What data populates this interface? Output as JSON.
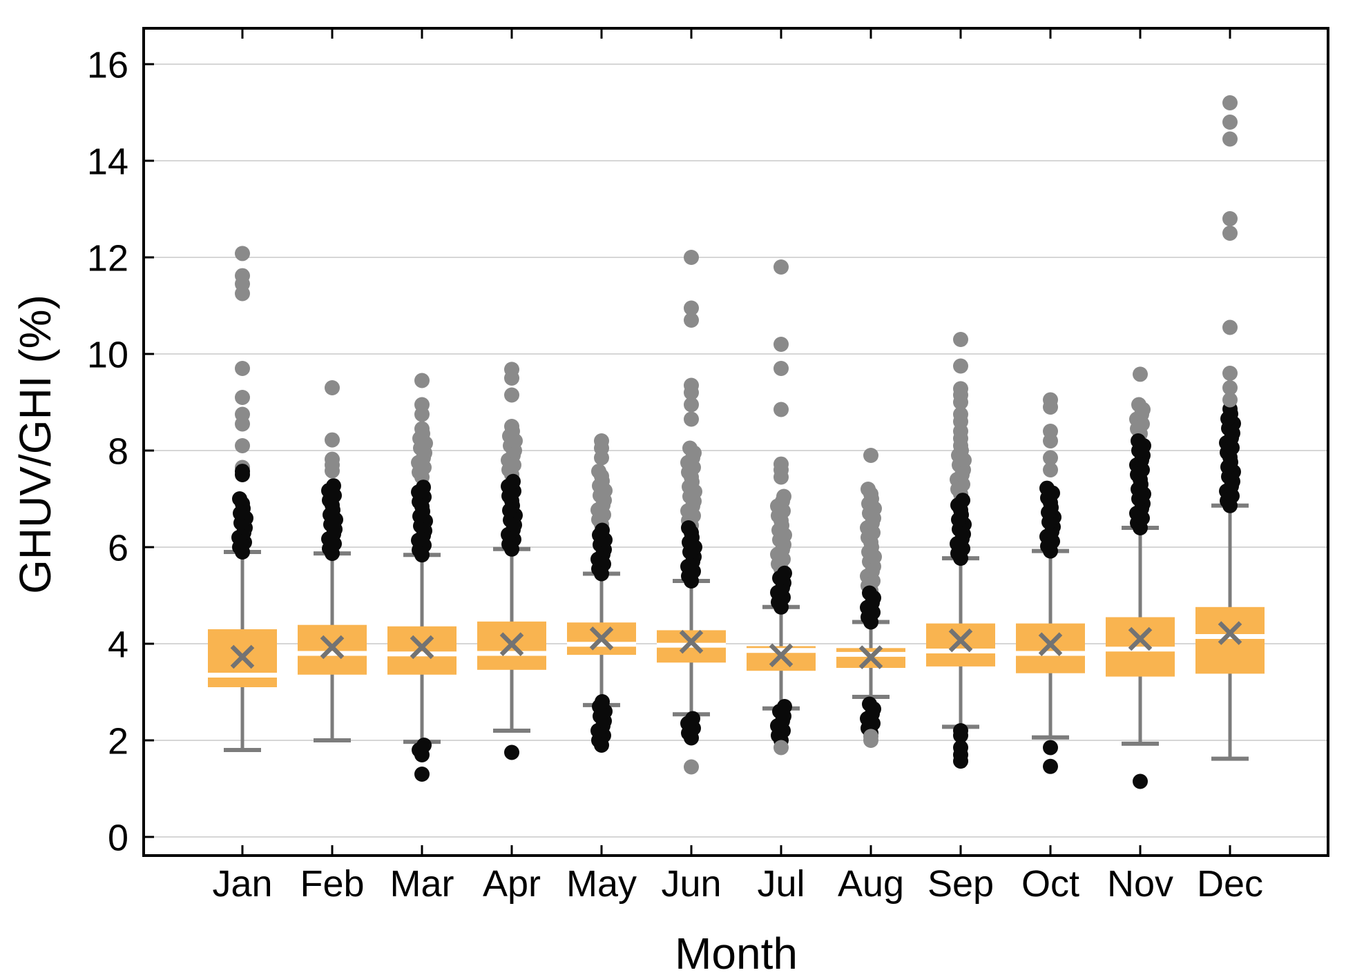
{
  "chart_data": {
    "type": "boxplot",
    "title": "",
    "xlabel": "Month",
    "ylabel": "GHUV/GHI (%)",
    "categories": [
      "Jan",
      "Feb",
      "Mar",
      "Apr",
      "May",
      "Jun",
      "Jul",
      "Aug",
      "Sep",
      "Oct",
      "Nov",
      "Dec"
    ],
    "y_ticks": [
      0,
      2,
      4,
      6,
      8,
      10,
      12,
      14,
      16
    ],
    "y_tick_labels": [
      "0",
      "2",
      "4",
      "6",
      "8",
      "10",
      "12",
      "14",
      "16"
    ],
    "ylim": [
      -0.39,
      16.74
    ],
    "grid": "horizontal-major-only",
    "legend": "none",
    "marker_notes": {
      "box": "orange IQR box, no border",
      "median": "white line across box",
      "mean": "gray x marker",
      "near_outliers": "black dots",
      "far_outliers": "gray dots"
    },
    "colors": {
      "box_fill": "#F9B450",
      "median": "#FFFFFF",
      "whisker": "#7C7C7C",
      "mean_marker": "#737373",
      "outlier_near": "#0A0A0A",
      "outlier_far": "#8A8A8A",
      "gridline": "#D6D6D6",
      "axis": "#000000",
      "background": "#FFFFFF"
    },
    "boxes": [
      {
        "month": "Jan",
        "whisker_low": 1.8,
        "q1": 3.1,
        "median": 3.35,
        "mean": 3.73,
        "q3": 4.3,
        "whisker_high": 5.9,
        "outliers_high_near_range": [
          5.9,
          7.0
        ],
        "outliers_high_near_dots": [
          7.5,
          7.57
        ],
        "outliers_high_far_range": null,
        "outliers_high_far_dots": [
          7.65,
          8.1,
          8.55,
          8.75,
          9.1,
          9.7,
          11.25,
          11.45,
          11.62,
          12.08
        ],
        "outliers_low_near_range": null,
        "outliers_low_near_dots": [],
        "outliers_low_far_dots": []
      },
      {
        "month": "Feb",
        "whisker_low": 2.0,
        "q1": 3.36,
        "median": 3.8,
        "mean": 3.93,
        "q3": 4.39,
        "whisker_high": 5.87,
        "outliers_high_near_range": [
          5.87,
          7.35
        ],
        "outliers_high_near_dots": [],
        "outliers_high_far_range": null,
        "outliers_high_far_dots": [
          7.58,
          7.7,
          7.82,
          8.22,
          9.3
        ],
        "outliers_low_near_range": null,
        "outliers_low_near_dots": [],
        "outliers_low_far_dots": []
      },
      {
        "month": "Mar",
        "whisker_low": 1.97,
        "q1": 3.36,
        "median": 3.79,
        "mean": 3.93,
        "q3": 4.36,
        "whisker_high": 5.84,
        "outliers_high_near_range": [
          5.84,
          7.32
        ],
        "outliers_high_near_dots": [],
        "outliers_high_far_range": [
          7.45,
          8.52
        ],
        "outliers_high_far_dots": [
          8.75,
          8.95,
          9.45
        ],
        "outliers_low_near_range": [
          1.7,
          1.95
        ],
        "outliers_low_near_dots": [
          1.3
        ],
        "outliers_low_far_dots": []
      },
      {
        "month": "Apr",
        "whisker_low": 2.2,
        "q1": 3.46,
        "median": 3.8,
        "mean": 3.99,
        "q3": 4.46,
        "whisker_high": 5.96,
        "outliers_high_near_range": [
          5.96,
          7.4
        ],
        "outliers_high_near_dots": [],
        "outliers_high_far_range": [
          7.5,
          8.5
        ],
        "outliers_high_far_dots": [
          9.15,
          9.5,
          9.68
        ],
        "outliers_low_near_range": null,
        "outliers_low_near_dots": [
          1.75
        ],
        "outliers_low_far_dots": []
      },
      {
        "month": "May",
        "whisker_low": 2.73,
        "q1": 3.77,
        "median": 3.99,
        "mean": 4.11,
        "q3": 4.44,
        "whisker_high": 5.45,
        "outliers_high_near_range": [
          5.45,
          6.42
        ],
        "outliers_high_near_dots": [],
        "outliers_high_far_range": [
          6.47,
          7.62
        ],
        "outliers_high_far_dots": [
          7.85,
          8.05,
          8.2
        ],
        "outliers_low_near_range": [
          1.9,
          2.85
        ],
        "outliers_low_near_dots": [],
        "outliers_low_far_dots": []
      },
      {
        "month": "Jun",
        "whisker_low": 2.54,
        "q1": 3.61,
        "median": 3.97,
        "mean": 4.04,
        "q3": 4.28,
        "whisker_high": 5.3,
        "outliers_high_near_range": [
          5.3,
          6.4
        ],
        "outliers_high_near_dots": [],
        "outliers_high_far_range": [
          6.45,
          8.1
        ],
        "outliers_high_far_dots": [
          8.65,
          8.95,
          9.2,
          9.35,
          10.7,
          10.95,
          12.0
        ],
        "outliers_low_near_range": [
          2.05,
          2.45
        ],
        "outliers_low_near_dots": [],
        "outliers_low_far_dots": [
          1.45
        ]
      },
      {
        "month": "Jul",
        "whisker_low": 2.66,
        "q1": 3.44,
        "median": 3.86,
        "mean": 3.76,
        "q3": 3.95,
        "whisker_high": 4.76,
        "outliers_high_near_range": [
          4.76,
          5.5
        ],
        "outliers_high_near_dots": [],
        "outliers_high_far_range": [
          5.55,
          7.05
        ],
        "outliers_high_far_dots": [
          7.45,
          7.6,
          7.72,
          8.85,
          9.7,
          10.2,
          11.8
        ],
        "outliers_low_near_range": [
          2.0,
          2.78
        ],
        "outliers_low_near_dots": [],
        "outliers_low_far_dots": [
          1.85
        ]
      },
      {
        "month": "Aug",
        "whisker_low": 2.9,
        "q1": 3.5,
        "median": 3.78,
        "mean": 3.72,
        "q3": 3.91,
        "whisker_high": 4.45,
        "outliers_high_near_range": [
          4.45,
          5.05
        ],
        "outliers_high_near_dots": [],
        "outliers_high_far_range": [
          5.1,
          7.22
        ],
        "outliers_high_far_dots": [
          7.9
        ],
        "outliers_low_near_range": [
          2.15,
          2.84
        ],
        "outliers_low_near_dots": [],
        "outliers_low_far_dots": [
          2.0,
          2.08
        ]
      },
      {
        "month": "Sep",
        "whisker_low": 2.28,
        "q1": 3.53,
        "median": 3.85,
        "mean": 4.07,
        "q3": 4.42,
        "whisker_high": 5.77,
        "outliers_high_near_range": [
          5.77,
          7.05
        ],
        "outliers_high_near_dots": [],
        "outliers_high_far_range": [
          7.1,
          8.12
        ],
        "outliers_high_far_dots": [
          8.25,
          8.4,
          8.6,
          8.75,
          9.0,
          9.15,
          9.28,
          9.75,
          10.3
        ],
        "outliers_low_near_range": null,
        "outliers_low_near_dots": [
          2.2,
          2.1,
          1.85,
          1.7,
          1.57
        ],
        "outliers_low_far_dots": []
      },
      {
        "month": "Oct",
        "whisker_low": 2.06,
        "q1": 3.39,
        "median": 3.8,
        "mean": 3.99,
        "q3": 4.42,
        "whisker_high": 5.92,
        "outliers_high_near_range": [
          5.92,
          7.27
        ],
        "outliers_high_near_dots": [],
        "outliers_high_far_range": null,
        "outliers_high_far_dots": [
          7.6,
          7.85,
          8.2,
          8.4,
          8.9,
          9.05
        ],
        "outliers_low_near_range": null,
        "outliers_low_near_dots": [
          1.85,
          1.46
        ],
        "outliers_low_far_dots": []
      },
      {
        "month": "Nov",
        "whisker_low": 1.93,
        "q1": 3.32,
        "median": 3.89,
        "mean": 4.1,
        "q3": 4.55,
        "whisker_high": 6.4,
        "outliers_high_near_range": [
          6.4,
          8.27
        ],
        "outliers_high_near_dots": [],
        "outliers_high_far_range": [
          8.35,
          9.0
        ],
        "outliers_high_far_dots": [
          9.58
        ],
        "outliers_low_near_range": null,
        "outliers_low_near_dots": [
          1.15
        ],
        "outliers_low_far_dots": []
      },
      {
        "month": "Dec",
        "whisker_low": 1.62,
        "q1": 3.38,
        "median": 4.15,
        "mean": 4.22,
        "q3": 4.76,
        "whisker_high": 6.86,
        "outliers_high_near_range": [
          6.86,
          8.87
        ],
        "outliers_high_near_dots": [],
        "outliers_high_far_range": null,
        "outliers_high_far_dots": [
          9.05,
          9.3,
          9.6,
          10.55,
          12.5,
          12.8,
          14.45,
          14.8,
          15.2
        ],
        "outliers_low_near_range": null,
        "outliers_low_near_dots": [],
        "outliers_low_far_dots": []
      }
    ]
  }
}
